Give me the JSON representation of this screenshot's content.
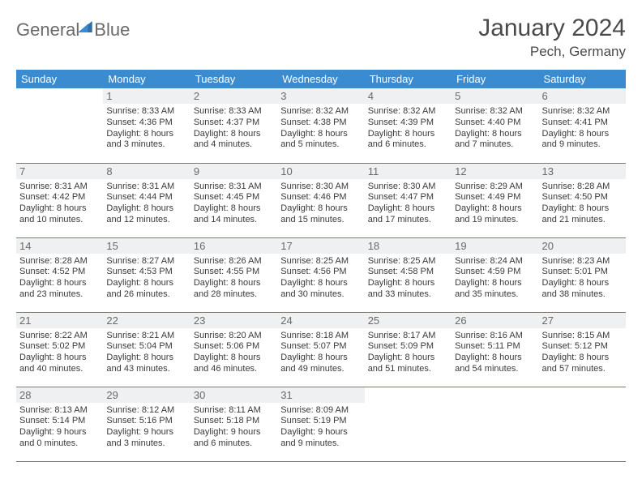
{
  "brand": {
    "word1": "General",
    "word2": "Blue"
  },
  "title": "January 2024",
  "location": "Pech, Germany",
  "colors": {
    "header_bg": "#3b8bd0",
    "header_text": "#ffffff",
    "daynum_bg": "#eef0f2",
    "daynum_text": "#6a6a6a",
    "body_text": "#3a3a3a",
    "rule": "#3b8bd0",
    "logo_gray": "#6b6b6b",
    "logo_blue": "#3b7fc4"
  },
  "weekdays": [
    "Sunday",
    "Monday",
    "Tuesday",
    "Wednesday",
    "Thursday",
    "Friday",
    "Saturday"
  ],
  "start_offset": 1,
  "days": [
    {
      "n": 1,
      "sr": "8:33 AM",
      "ss": "4:36 PM",
      "dl": "8 hours and 3 minutes."
    },
    {
      "n": 2,
      "sr": "8:33 AM",
      "ss": "4:37 PM",
      "dl": "8 hours and 4 minutes."
    },
    {
      "n": 3,
      "sr": "8:32 AM",
      "ss": "4:38 PM",
      "dl": "8 hours and 5 minutes."
    },
    {
      "n": 4,
      "sr": "8:32 AM",
      "ss": "4:39 PM",
      "dl": "8 hours and 6 minutes."
    },
    {
      "n": 5,
      "sr": "8:32 AM",
      "ss": "4:40 PM",
      "dl": "8 hours and 7 minutes."
    },
    {
      "n": 6,
      "sr": "8:32 AM",
      "ss": "4:41 PM",
      "dl": "8 hours and 9 minutes."
    },
    {
      "n": 7,
      "sr": "8:31 AM",
      "ss": "4:42 PM",
      "dl": "8 hours and 10 minutes."
    },
    {
      "n": 8,
      "sr": "8:31 AM",
      "ss": "4:44 PM",
      "dl": "8 hours and 12 minutes."
    },
    {
      "n": 9,
      "sr": "8:31 AM",
      "ss": "4:45 PM",
      "dl": "8 hours and 14 minutes."
    },
    {
      "n": 10,
      "sr": "8:30 AM",
      "ss": "4:46 PM",
      "dl": "8 hours and 15 minutes."
    },
    {
      "n": 11,
      "sr": "8:30 AM",
      "ss": "4:47 PM",
      "dl": "8 hours and 17 minutes."
    },
    {
      "n": 12,
      "sr": "8:29 AM",
      "ss": "4:49 PM",
      "dl": "8 hours and 19 minutes."
    },
    {
      "n": 13,
      "sr": "8:28 AM",
      "ss": "4:50 PM",
      "dl": "8 hours and 21 minutes."
    },
    {
      "n": 14,
      "sr": "8:28 AM",
      "ss": "4:52 PM",
      "dl": "8 hours and 23 minutes."
    },
    {
      "n": 15,
      "sr": "8:27 AM",
      "ss": "4:53 PM",
      "dl": "8 hours and 26 minutes."
    },
    {
      "n": 16,
      "sr": "8:26 AM",
      "ss": "4:55 PM",
      "dl": "8 hours and 28 minutes."
    },
    {
      "n": 17,
      "sr": "8:25 AM",
      "ss": "4:56 PM",
      "dl": "8 hours and 30 minutes."
    },
    {
      "n": 18,
      "sr": "8:25 AM",
      "ss": "4:58 PM",
      "dl": "8 hours and 33 minutes."
    },
    {
      "n": 19,
      "sr": "8:24 AM",
      "ss": "4:59 PM",
      "dl": "8 hours and 35 minutes."
    },
    {
      "n": 20,
      "sr": "8:23 AM",
      "ss": "5:01 PM",
      "dl": "8 hours and 38 minutes."
    },
    {
      "n": 21,
      "sr": "8:22 AM",
      "ss": "5:02 PM",
      "dl": "8 hours and 40 minutes."
    },
    {
      "n": 22,
      "sr": "8:21 AM",
      "ss": "5:04 PM",
      "dl": "8 hours and 43 minutes."
    },
    {
      "n": 23,
      "sr": "8:20 AM",
      "ss": "5:06 PM",
      "dl": "8 hours and 46 minutes."
    },
    {
      "n": 24,
      "sr": "8:18 AM",
      "ss": "5:07 PM",
      "dl": "8 hours and 49 minutes."
    },
    {
      "n": 25,
      "sr": "8:17 AM",
      "ss": "5:09 PM",
      "dl": "8 hours and 51 minutes."
    },
    {
      "n": 26,
      "sr": "8:16 AM",
      "ss": "5:11 PM",
      "dl": "8 hours and 54 minutes."
    },
    {
      "n": 27,
      "sr": "8:15 AM",
      "ss": "5:12 PM",
      "dl": "8 hours and 57 minutes."
    },
    {
      "n": 28,
      "sr": "8:13 AM",
      "ss": "5:14 PM",
      "dl": "9 hours and 0 minutes."
    },
    {
      "n": 29,
      "sr": "8:12 AM",
      "ss": "5:16 PM",
      "dl": "9 hours and 3 minutes."
    },
    {
      "n": 30,
      "sr": "8:11 AM",
      "ss": "5:18 PM",
      "dl": "9 hours and 6 minutes."
    },
    {
      "n": 31,
      "sr": "8:09 AM",
      "ss": "5:19 PM",
      "dl": "9 hours and 9 minutes."
    }
  ],
  "labels": {
    "sunrise": "Sunrise:",
    "sunset": "Sunset:",
    "daylight": "Daylight:"
  }
}
